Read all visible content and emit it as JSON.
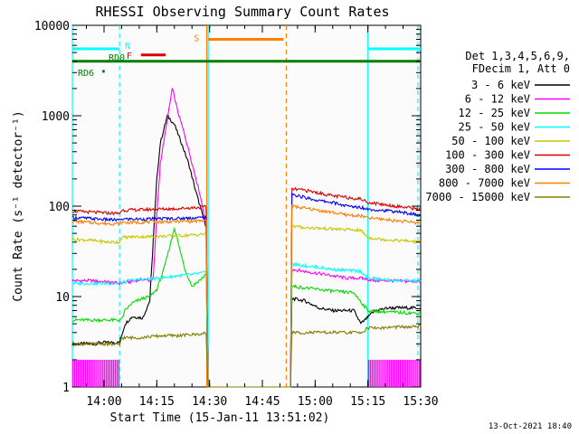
{
  "chart_data": {
    "type": "line",
    "title": "RHESSI Observing Summary Count Rates",
    "xlabel": "Start Time (15-Jan-11 13:51:02)",
    "ylabel": "Count Rate (s⁻¹ detector⁻¹)",
    "yscale": "log",
    "ylim": [
      1,
      10000
    ],
    "xlim_minutes": [
      0,
      99
    ],
    "x_tick_labels": [
      "14:00",
      "14:15",
      "14:30",
      "14:45",
      "15:00",
      "15:15",
      "15:30"
    ],
    "x_tick_minutes": [
      9,
      24,
      39,
      54,
      69,
      84,
      99
    ],
    "y_tick_labels": [
      "1",
      "10",
      "100",
      "1000",
      "10000"
    ],
    "y_tick_values": [
      1,
      10,
      100,
      1000,
      10000
    ],
    "legend_header": [
      "Det 1,3,4,5,6,9,",
      "FDecim 1, Att 0"
    ],
    "footer_date": "13-Oct-2021 18:40",
    "series": [
      {
        "name": "3 - 6 keV",
        "color": "#000000",
        "points": [
          [
            0,
            3
          ],
          [
            4,
            3
          ],
          [
            6.4,
            3
          ],
          [
            8,
            3.1
          ],
          [
            11,
            3.1
          ],
          [
            13.4,
            3.1
          ],
          [
            15,
            5
          ],
          [
            17,
            6
          ],
          [
            20,
            5.8
          ],
          [
            22,
            9
          ],
          [
            24,
            200
          ],
          [
            25,
            500
          ],
          [
            27,
            1000
          ],
          [
            29,
            800
          ],
          [
            31,
            500
          ],
          [
            33,
            300
          ],
          [
            35,
            150
          ],
          [
            37,
            80
          ],
          [
            38,
            60
          ],
          [
            38.6,
            1
          ],
          [
            62,
            1
          ],
          [
            62.4,
            9.5
          ],
          [
            66,
            9
          ],
          [
            70,
            7.5
          ],
          [
            74,
            7
          ],
          [
            78,
            7
          ],
          [
            80,
            7
          ],
          [
            82,
            5
          ],
          [
            86,
            7
          ],
          [
            90,
            7.5
          ],
          [
            94,
            7.5
          ],
          [
            96,
            7.5
          ],
          [
            99,
            7.5
          ]
        ]
      },
      {
        "name": "6 - 12 keV",
        "color": "#ff00ff",
        "points": [
          [
            0,
            15
          ],
          [
            5,
            15
          ],
          [
            10,
            14.5
          ],
          [
            13.4,
            14
          ],
          [
            16,
            14.5
          ],
          [
            20,
            15.5
          ],
          [
            22,
            15
          ],
          [
            23,
            16
          ],
          [
            24,
            80
          ],
          [
            25,
            300
          ],
          [
            27,
            900
          ],
          [
            28.4,
            2000
          ],
          [
            30,
            1100
          ],
          [
            32,
            600
          ],
          [
            34,
            300
          ],
          [
            36,
            150
          ],
          [
            37,
            100
          ],
          [
            38,
            60
          ],
          [
            38.6,
            1
          ],
          [
            62,
            1
          ],
          [
            62.4,
            20
          ],
          [
            66,
            19
          ],
          [
            70,
            18
          ],
          [
            74,
            17
          ],
          [
            78,
            16
          ],
          [
            82,
            16
          ],
          [
            86,
            15
          ],
          [
            90,
            15
          ],
          [
            94,
            14.8
          ],
          [
            99,
            14.7
          ]
        ]
      },
      {
        "name": "12 - 25 keV",
        "color": "#00dd00",
        "points": [
          [
            0,
            5.5
          ],
          [
            5,
            5.5
          ],
          [
            10,
            5.5
          ],
          [
            13.4,
            5.5
          ],
          [
            14,
            5.6
          ],
          [
            15,
            7
          ],
          [
            17,
            8.5
          ],
          [
            20,
            9.5
          ],
          [
            22,
            10
          ],
          [
            24,
            12
          ],
          [
            26,
            20
          ],
          [
            28,
            40
          ],
          [
            29,
            58
          ],
          [
            30,
            40
          ],
          [
            32,
            20
          ],
          [
            34,
            13
          ],
          [
            36,
            15
          ],
          [
            37,
            16
          ],
          [
            38,
            18
          ],
          [
            38.6,
            1
          ],
          [
            62,
            1
          ],
          [
            62.4,
            13
          ],
          [
            66,
            12.5
          ],
          [
            70,
            12
          ],
          [
            74,
            11.5
          ],
          [
            80,
            11
          ],
          [
            84,
            7
          ],
          [
            88,
            6.8
          ],
          [
            92,
            6.7
          ],
          [
            99,
            6.5
          ]
        ]
      },
      {
        "name": "25 - 50 keV",
        "color": "#00ffff",
        "points": [
          [
            0,
            14
          ],
          [
            6,
            14
          ],
          [
            10,
            14
          ],
          [
            13.4,
            14
          ],
          [
            16,
            15
          ],
          [
            20,
            15.5
          ],
          [
            25,
            16
          ],
          [
            30,
            17
          ],
          [
            34,
            17.5
          ],
          [
            38,
            18.5
          ],
          [
            38.6,
            1
          ],
          [
            62,
            1
          ],
          [
            62.4,
            23
          ],
          [
            66,
            22
          ],
          [
            70,
            21
          ],
          [
            74,
            20
          ],
          [
            78,
            19.5
          ],
          [
            82,
            19
          ],
          [
            84,
            16
          ],
          [
            88,
            15.5
          ],
          [
            92,
            15
          ],
          [
            96,
            15
          ],
          [
            99,
            14.7
          ]
        ]
      },
      {
        "name": "50 - 100 keV",
        "color": "#c8c800",
        "points": [
          [
            0,
            43
          ],
          [
            5,
            42
          ],
          [
            10,
            40
          ],
          [
            13.4,
            40
          ],
          [
            14,
            45
          ],
          [
            18,
            46
          ],
          [
            22,
            46
          ],
          [
            26,
            46.5
          ],
          [
            30,
            47
          ],
          [
            34,
            48
          ],
          [
            38,
            49
          ],
          [
            38.6,
            1
          ],
          [
            62,
            1
          ],
          [
            62.4,
            60
          ],
          [
            66,
            58
          ],
          [
            70,
            57
          ],
          [
            74,
            56
          ],
          [
            78,
            55
          ],
          [
            82,
            54
          ],
          [
            84,
            45
          ],
          [
            88,
            43
          ],
          [
            92,
            42
          ],
          [
            96,
            41
          ],
          [
            99,
            40
          ]
        ]
      },
      {
        "name": "100 - 300 keV",
        "color": "#dd0000",
        "points": [
          [
            0,
            88
          ],
          [
            5,
            86
          ],
          [
            10,
            84
          ],
          [
            13.4,
            83
          ],
          [
            14,
            90
          ],
          [
            18,
            91
          ],
          [
            22,
            92
          ],
          [
            26,
            93
          ],
          [
            30,
            94
          ],
          [
            34,
            96
          ],
          [
            38,
            98
          ],
          [
            38.6,
            1
          ],
          [
            62,
            1
          ],
          [
            62.4,
            155
          ],
          [
            66,
            150
          ],
          [
            70,
            140
          ],
          [
            74,
            130
          ],
          [
            78,
            125
          ],
          [
            82,
            120
          ],
          [
            84,
            110
          ],
          [
            88,
            105
          ],
          [
            92,
            100
          ],
          [
            96,
            96
          ],
          [
            99,
            92
          ]
        ]
      },
      {
        "name": "300 - 800 keV",
        "color": "#0000ff",
        "points": [
          [
            0,
            75
          ],
          [
            5,
            73
          ],
          [
            10,
            71
          ],
          [
            13.4,
            70
          ],
          [
            14,
            72
          ],
          [
            18,
            72
          ],
          [
            22,
            72
          ],
          [
            26,
            73
          ],
          [
            30,
            73
          ],
          [
            34,
            74
          ],
          [
            38,
            75
          ],
          [
            38.6,
            1
          ],
          [
            62,
            1
          ],
          [
            62.4,
            135
          ],
          [
            66,
            125
          ],
          [
            70,
            115
          ],
          [
            74,
            110
          ],
          [
            78,
            100
          ],
          [
            82,
            97
          ],
          [
            84,
            93
          ],
          [
            88,
            90
          ],
          [
            92,
            87
          ],
          [
            96,
            83
          ],
          [
            99,
            78
          ]
        ]
      },
      {
        "name": "800 - 7000 keV",
        "color": "#ff8000",
        "points": [
          [
            0,
            68
          ],
          [
            5,
            66
          ],
          [
            10,
            64
          ],
          [
            13.4,
            64
          ],
          [
            14,
            66
          ],
          [
            18,
            66
          ],
          [
            22,
            67
          ],
          [
            26,
            67
          ],
          [
            30,
            68
          ],
          [
            34,
            68
          ],
          [
            38,
            69
          ],
          [
            38.6,
            1
          ],
          [
            62,
            1
          ],
          [
            62.4,
            100
          ],
          [
            66,
            95
          ],
          [
            70,
            90
          ],
          [
            74,
            85
          ],
          [
            78,
            80
          ],
          [
            82,
            78
          ],
          [
            84,
            74
          ],
          [
            88,
            72
          ],
          [
            92,
            69
          ],
          [
            96,
            67
          ],
          [
            99,
            65
          ]
        ]
      },
      {
        "name": "7000 - 15000 keV",
        "color": "#808000",
        "points": [
          [
            0,
            3
          ],
          [
            5,
            3
          ],
          [
            10,
            3
          ],
          [
            13.4,
            2.9
          ],
          [
            14,
            3.5
          ],
          [
            18,
            3.5
          ],
          [
            22,
            3.6
          ],
          [
            26,
            3.7
          ],
          [
            30,
            3.7
          ],
          [
            34,
            3.8
          ],
          [
            38,
            3.9
          ],
          [
            38.6,
            1
          ],
          [
            62,
            1
          ],
          [
            62.4,
            4
          ],
          [
            66,
            4
          ],
          [
            70,
            4
          ],
          [
            74,
            4
          ],
          [
            78,
            4
          ],
          [
            82,
            4
          ],
          [
            84,
            4.5
          ],
          [
            88,
            4.5
          ],
          [
            92,
            4.6
          ],
          [
            96,
            4.6
          ],
          [
            99,
            4.7
          ]
        ]
      }
    ],
    "flag_bars": [
      {
        "label": "N",
        "color": "#00ffff",
        "level": 5500,
        "segments": [
          [
            0,
            13.4
          ],
          [
            84,
            99
          ]
        ]
      },
      {
        "label": "F",
        "color": "#dd0000",
        "level": 4700,
        "segments": [
          [
            19.5,
            26.5
          ]
        ]
      },
      {
        "label": "S",
        "color": "#ff8000",
        "level": 7000,
        "segments": [
          [
            38.6,
            60
          ]
        ]
      },
      {
        "label": "RD0",
        "color": "#008000",
        "level": 4000,
        "segments": [
          [
            0,
            99
          ]
        ]
      },
      {
        "label": "RD6",
        "color": "#008000",
        "level": 3100,
        "segments": [
          [
            8.5,
            9.2
          ]
        ]
      }
    ],
    "eclipse_bars": {
      "color": "#ff00ff",
      "ymin": 1,
      "ymax": 2,
      "ranges": [
        [
          0,
          13.4
        ],
        [
          84,
          99
        ]
      ]
    },
    "vertical_markers": [
      {
        "minute": 0,
        "color": "#00ffff",
        "style": "solid"
      },
      {
        "minute": 13.4,
        "color": "#00ffff",
        "style": "dashed"
      },
      {
        "minute": 38.6,
        "color": "#00ffff",
        "style": "solid"
      },
      {
        "minute": 38.2,
        "color": "#ff8000",
        "style": "solid"
      },
      {
        "minute": 60.8,
        "color": "#ff8000",
        "style": "dashed"
      },
      {
        "minute": 84,
        "color": "#00ffff",
        "style": "solid"
      },
      {
        "minute": 98.2,
        "color": "#00ffff",
        "style": "dashed"
      }
    ]
  }
}
